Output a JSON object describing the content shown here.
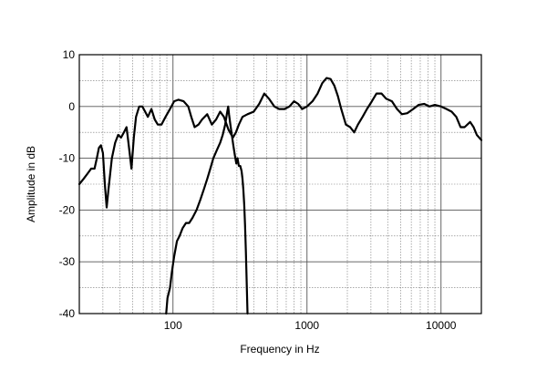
{
  "chart_data": {
    "type": "line",
    "title": "",
    "xlabel": "Frequency in Hz",
    "ylabel": "Amplitude in dB",
    "xscale": "log",
    "xlim": [
      20,
      20000
    ],
    "ylim": [
      -40,
      10
    ],
    "grid": true,
    "legend": "none",
    "x_tick_labels": [
      {
        "value": 100,
        "label": "100"
      },
      {
        "value": 1000,
        "label": "1000"
      },
      {
        "value": 10000,
        "label": "10000"
      }
    ],
    "y_tick_labels": [
      {
        "value": 10,
        "label": "10"
      },
      {
        "value": 0,
        "label": "0"
      },
      {
        "value": -10,
        "label": "-10"
      },
      {
        "value": -20,
        "label": "-20"
      },
      {
        "value": -30,
        "label": "-30"
      },
      {
        "value": -40,
        "label": "-40"
      }
    ],
    "line_color": "#000000",
    "series": [
      {
        "points": [
          [
            20,
            -15
          ],
          [
            21.5,
            -14
          ],
          [
            23,
            -13
          ],
          [
            24.5,
            -12
          ],
          [
            26,
            -12
          ],
          [
            27,
            -10
          ],
          [
            28,
            -8
          ],
          [
            29,
            -7.5
          ],
          [
            30,
            -9
          ],
          [
            31,
            -15
          ],
          [
            32,
            -19.5
          ],
          [
            33,
            -16
          ],
          [
            35,
            -10
          ],
          [
            37,
            -7
          ],
          [
            39,
            -5.5
          ],
          [
            41,
            -6
          ],
          [
            43,
            -5
          ],
          [
            45,
            -4
          ],
          [
            46,
            -6
          ],
          [
            48,
            -10
          ],
          [
            49,
            -12
          ],
          [
            51,
            -6
          ],
          [
            53,
            -2
          ],
          [
            56,
            0
          ],
          [
            59,
            0
          ],
          [
            62,
            -1
          ],
          [
            65,
            -2
          ],
          [
            69,
            -0.5
          ],
          [
            73,
            -2.5
          ],
          [
            77,
            -3.5
          ],
          [
            82,
            -3.5
          ],
          [
            88,
            -2
          ],
          [
            95,
            -0.5
          ],
          [
            102,
            1
          ],
          [
            110,
            1.3
          ],
          [
            120,
            1
          ],
          [
            130,
            0
          ],
          [
            137,
            -2
          ],
          [
            145,
            -4
          ],
          [
            155,
            -3.5
          ],
          [
            165,
            -2.5
          ],
          [
            180,
            -1.5
          ],
          [
            195,
            -3.5
          ],
          [
            210,
            -2.5
          ],
          [
            225,
            -1
          ],
          [
            240,
            -2
          ],
          [
            260,
            -4.5
          ],
          [
            280,
            -6
          ],
          [
            295,
            -5
          ],
          [
            310,
            -3.5
          ],
          [
            330,
            -2
          ],
          [
            360,
            -1.5
          ],
          [
            400,
            -1
          ],
          [
            440,
            0.5
          ],
          [
            480,
            2.5
          ],
          [
            520,
            1.5
          ],
          [
            570,
            0
          ],
          [
            620,
            -0.5
          ],
          [
            680,
            -0.5
          ],
          [
            740,
            0
          ],
          [
            800,
            1
          ],
          [
            860,
            0.5
          ],
          [
            920,
            -0.5
          ],
          [
            1000,
            0
          ],
          [
            1100,
            1
          ],
          [
            1200,
            2.5
          ],
          [
            1300,
            4.5
          ],
          [
            1400,
            5.5
          ],
          [
            1500,
            5.3
          ],
          [
            1600,
            4
          ],
          [
            1700,
            2
          ],
          [
            1800,
            -0.5
          ],
          [
            1950,
            -3.5
          ],
          [
            2100,
            -4
          ],
          [
            2250,
            -5
          ],
          [
            2400,
            -3.5
          ],
          [
            2600,
            -2
          ],
          [
            2800,
            -0.5
          ],
          [
            3050,
            1
          ],
          [
            3300,
            2.5
          ],
          [
            3600,
            2.5
          ],
          [
            3900,
            1.5
          ],
          [
            4300,
            1
          ],
          [
            4700,
            -0.5
          ],
          [
            5100,
            -1.5
          ],
          [
            5600,
            -1.3
          ],
          [
            6200,
            -0.5
          ],
          [
            6800,
            0.3
          ],
          [
            7500,
            0.5
          ],
          [
            8200,
            0
          ],
          [
            9000,
            0.3
          ],
          [
            10000,
            0
          ],
          [
            11000,
            -0.5
          ],
          [
            12000,
            -1
          ],
          [
            13000,
            -2
          ],
          [
            14000,
            -4
          ],
          [
            15000,
            -4
          ],
          [
            16500,
            -3
          ],
          [
            17500,
            -4
          ],
          [
            18500,
            -5.5
          ],
          [
            20000,
            -6.5
          ]
        ]
      },
      {
        "points": [
          [
            89,
            -40
          ],
          [
            91,
            -37
          ],
          [
            95,
            -35
          ],
          [
            98,
            -32
          ],
          [
            102,
            -29
          ],
          [
            107,
            -26
          ],
          [
            112,
            -25
          ],
          [
            118,
            -23.5
          ],
          [
            125,
            -22.5
          ],
          [
            132,
            -22.5
          ],
          [
            140,
            -21.5
          ],
          [
            150,
            -20
          ],
          [
            160,
            -18
          ],
          [
            170,
            -16
          ],
          [
            180,
            -14
          ],
          [
            190,
            -12
          ],
          [
            200,
            -10
          ],
          [
            212,
            -8.5
          ],
          [
            225,
            -7
          ],
          [
            235,
            -5.5
          ],
          [
            245,
            -3.5
          ],
          [
            252,
            -1.5
          ],
          [
            258,
            0
          ],
          [
            262,
            -1.5
          ],
          [
            268,
            -3.5
          ],
          [
            275,
            -5.5
          ],
          [
            282,
            -7.5
          ],
          [
            290,
            -9.5
          ],
          [
            297,
            -11
          ],
          [
            303,
            -10
          ],
          [
            310,
            -11.5
          ],
          [
            318,
            -11.5
          ],
          [
            325,
            -12.5
          ],
          [
            330,
            -14
          ],
          [
            335,
            -16
          ],
          [
            340,
            -19
          ],
          [
            345,
            -23
          ],
          [
            350,
            -28
          ],
          [
            355,
            -34
          ],
          [
            360,
            -40
          ]
        ]
      }
    ]
  }
}
